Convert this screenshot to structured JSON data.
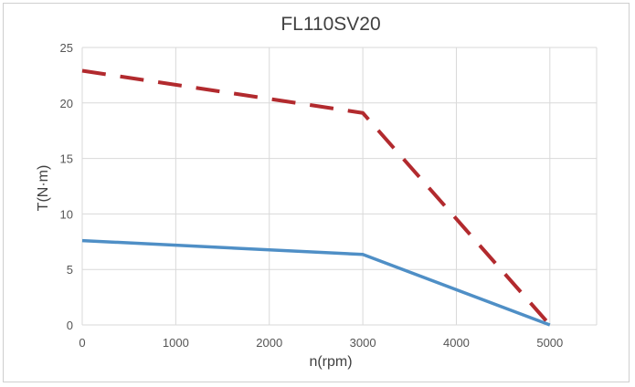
{
  "chart_data": {
    "type": "line",
    "title": "FL110SV20",
    "xlabel": "n(rpm)",
    "ylabel": "T(N·m)",
    "xlim": [
      0,
      5500
    ],
    "ylim": [
      0,
      25
    ],
    "x_ticks": [
      "0",
      "1000",
      "2000",
      "3000",
      "4000",
      "5000"
    ],
    "y_ticks": [
      "0",
      "5",
      "10",
      "15",
      "20",
      "25"
    ],
    "grid": true,
    "colors": {
      "peak": "#b22a2e",
      "rated": "#4f8fc6",
      "grid": "#d9d9d9"
    },
    "series": [
      {
        "x": [
          0,
          3000,
          5000
        ],
        "values": [
          22.9,
          19.1,
          0
        ],
        "style": "dashed",
        "color": "#b22a2e"
      },
      {
        "x": [
          0,
          3000,
          5000
        ],
        "values": [
          7.6,
          6.35,
          0
        ],
        "style": "solid",
        "color": "#4f8fc6"
      }
    ]
  }
}
